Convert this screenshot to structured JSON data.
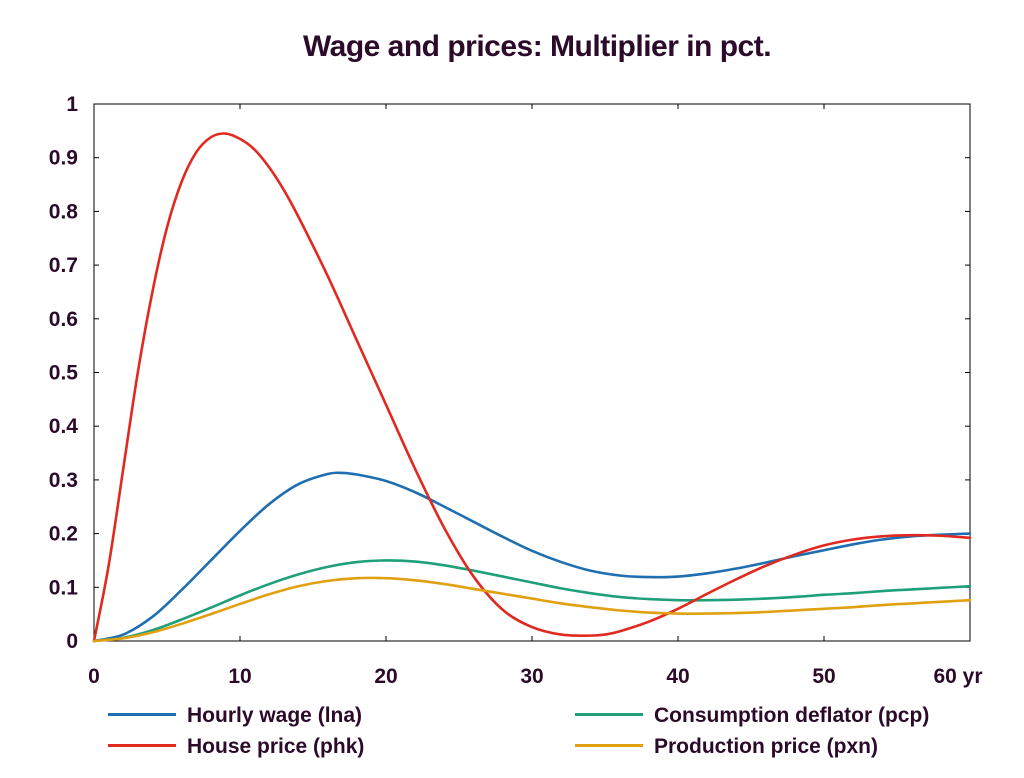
{
  "chart_data": {
    "type": "line",
    "title": "Wage and prices: Multiplier in pct.",
    "xlabel": "",
    "ylabel": "",
    "xlim": [
      0,
      60
    ],
    "ylim": [
      0,
      1
    ],
    "x_ticks": [
      0,
      10,
      20,
      30,
      40,
      50,
      60
    ],
    "x_tick_labels": [
      "0",
      "10",
      "20",
      "30",
      "40",
      "50",
      "60 yr"
    ],
    "y_ticks": [
      0,
      0.1,
      0.2,
      0.3,
      0.4,
      0.5,
      0.6,
      0.7,
      0.8,
      0.9,
      1
    ],
    "y_tick_labels": [
      "0",
      "0.1",
      "0.2",
      "0.3",
      "0.4",
      "0.5",
      "0.6",
      "0.7",
      "0.8",
      "0.9",
      "1"
    ],
    "grid": false,
    "legend_position": "bottom",
    "series": [
      {
        "name": "Hourly wage (lna)",
        "color": "#1f6fb0",
        "x": [
          0,
          2,
          4,
          6,
          8,
          10,
          12,
          14,
          16,
          17,
          18,
          20,
          22,
          24,
          26,
          28,
          30,
          32,
          34,
          36,
          38,
          40,
          42,
          44,
          46,
          48,
          50,
          52,
          54,
          56,
          58,
          60
        ],
        "y": [
          0,
          0.012,
          0.045,
          0.095,
          0.15,
          0.205,
          0.255,
          0.292,
          0.311,
          0.313,
          0.31,
          0.298,
          0.277,
          0.25,
          0.222,
          0.194,
          0.168,
          0.147,
          0.131,
          0.122,
          0.119,
          0.12,
          0.126,
          0.135,
          0.146,
          0.158,
          0.169,
          0.18,
          0.189,
          0.195,
          0.198,
          0.2
        ]
      },
      {
        "name": "Consumption deflator (pcp)",
        "color": "#1fa07a",
        "x": [
          0,
          2,
          4,
          6,
          8,
          10,
          12,
          14,
          16,
          18,
          20,
          22,
          24,
          26,
          28,
          30,
          32,
          34,
          36,
          38,
          40,
          42,
          44,
          46,
          48,
          50,
          52,
          54,
          56,
          58,
          60
        ],
        "y": [
          0,
          0.006,
          0.02,
          0.04,
          0.062,
          0.085,
          0.106,
          0.124,
          0.138,
          0.147,
          0.15,
          0.148,
          0.141,
          0.131,
          0.12,
          0.109,
          0.098,
          0.089,
          0.082,
          0.078,
          0.076,
          0.076,
          0.077,
          0.079,
          0.082,
          0.086,
          0.089,
          0.093,
          0.096,
          0.099,
          0.102
        ]
      },
      {
        "name": "House price (phk)",
        "color": "#e02a20",
        "x": [
          0,
          1,
          2,
          3,
          4,
          5,
          6,
          7,
          8,
          9,
          10,
          11,
          12,
          13,
          14,
          16,
          18,
          20,
          22,
          24,
          26,
          28,
          30,
          32,
          34,
          35,
          36,
          38,
          40,
          42,
          44,
          46,
          48,
          50,
          52,
          54,
          56,
          58,
          60
        ],
        "y": [
          0,
          0.14,
          0.32,
          0.5,
          0.65,
          0.77,
          0.855,
          0.91,
          0.938,
          0.945,
          0.935,
          0.915,
          0.882,
          0.84,
          0.79,
          0.68,
          0.56,
          0.44,
          0.32,
          0.21,
          0.12,
          0.058,
          0.026,
          0.012,
          0.01,
          0.012,
          0.018,
          0.036,
          0.06,
          0.088,
          0.115,
          0.14,
          0.161,
          0.178,
          0.189,
          0.195,
          0.197,
          0.196,
          0.192
        ]
      },
      {
        "name": "Production price (pxn)",
        "color": "#e0a010",
        "x": [
          0,
          2,
          4,
          6,
          8,
          10,
          12,
          14,
          16,
          18,
          20,
          22,
          24,
          26,
          28,
          30,
          32,
          34,
          36,
          38,
          40,
          42,
          44,
          46,
          48,
          50,
          52,
          54,
          56,
          58,
          60
        ],
        "y": [
          0,
          0.005,
          0.016,
          0.032,
          0.05,
          0.069,
          0.087,
          0.102,
          0.112,
          0.117,
          0.117,
          0.113,
          0.106,
          0.097,
          0.088,
          0.079,
          0.07,
          0.063,
          0.057,
          0.053,
          0.051,
          0.051,
          0.052,
          0.054,
          0.057,
          0.06,
          0.063,
          0.067,
          0.07,
          0.073,
          0.076
        ]
      }
    ]
  },
  "legend": [
    {
      "label": "Hourly wage (lna)",
      "color": "#1f6fb0"
    },
    {
      "label": "Consumption deflator (pcp)",
      "color": "#1fa07a"
    },
    {
      "label": "House price (phk)",
      "color": "#e02a20"
    },
    {
      "label": "Production price (pxn)",
      "color": "#e0a010"
    }
  ]
}
